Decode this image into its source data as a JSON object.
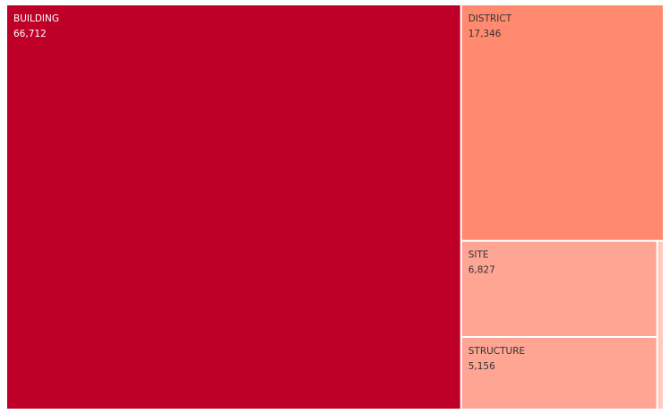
{
  "chart_data": {
    "type": "treemap",
    "title": "",
    "categories": [
      "BUILDING",
      "DISTRICT",
      "SITE",
      "STRUCTURE",
      ""
    ],
    "values": [
      66712,
      17346,
      6827,
      5156,
      400
    ],
    "value_labels": [
      "66,712",
      "17,346",
      "6,827",
      "5,156",
      ""
    ],
    "colors": [
      "#be0028",
      "#ff8a70",
      "#ffa594",
      "#ffa594",
      "#ffc9bd"
    ],
    "label_colors": [
      "#ffffff",
      "#333333",
      "#333333",
      "#333333",
      "#333333"
    ],
    "legend": "none"
  }
}
